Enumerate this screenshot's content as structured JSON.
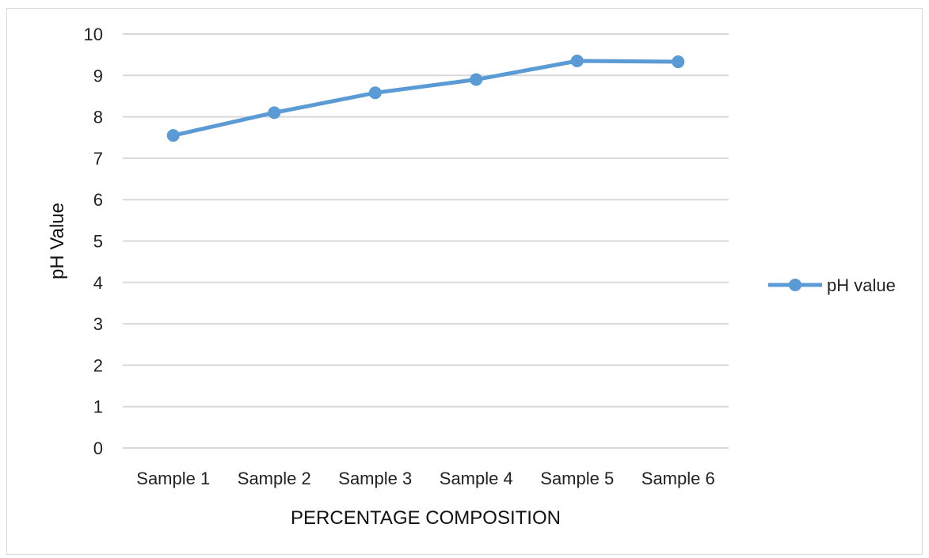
{
  "chart_data": {
    "type": "line",
    "categories": [
      "Sample 1",
      "Sample 2",
      "Sample 3",
      "Sample 4",
      "Sample 5",
      "Sample 6"
    ],
    "series": [
      {
        "name": "pH value",
        "values": [
          7.55,
          8.1,
          8.58,
          8.9,
          9.35,
          9.33
        ],
        "color": "#5b9bd5"
      }
    ],
    "title": "",
    "xlabel": "PERCENTAGE COMPOSITION",
    "ylabel": "pH Value",
    "ylim": [
      0,
      10
    ],
    "yticks": [
      0,
      1,
      2,
      3,
      4,
      5,
      6,
      7,
      8,
      9,
      10
    ],
    "grid": true,
    "legend_position": "right",
    "gridline_color": "#d9d9d9"
  }
}
